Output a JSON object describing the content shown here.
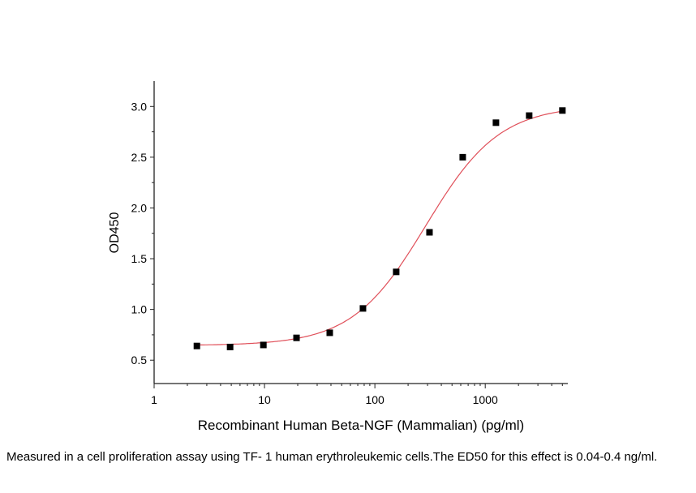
{
  "chart_data": {
    "type": "scatter",
    "title": "",
    "xlabel": "Recombinant Human Beta-NGF (Mammalian) (pg/ml)",
    "ylabel": "OD450",
    "x_scale": "log",
    "xlim": [
      1,
      5600
    ],
    "ylim": [
      0.27,
      3.25
    ],
    "x_ticks": [
      "1",
      "10",
      "100",
      "1000"
    ],
    "y_ticks": [
      "0.5",
      "1.0",
      "1.5",
      "2.0",
      "2.5",
      "3.0"
    ],
    "grid": false,
    "colors": {
      "points": "#000000",
      "fit": "#e0505a"
    },
    "series": [
      {
        "x": [
          2.44,
          4.88,
          9.77,
          19.5,
          39,
          78,
          156,
          312.5,
          625,
          1250,
          2500,
          5000
        ],
        "y": [
          0.64,
          0.63,
          0.65,
          0.72,
          0.77,
          1.01,
          1.37,
          1.76,
          2.5,
          2.84,
          2.91,
          2.96
        ]
      }
    ],
    "fit": {
      "model": "4PL",
      "bottom": 0.645,
      "top": 3.01,
      "ec50": 290,
      "hill": 1.3
    }
  },
  "caption": "Measured in a cell proliferation assay using TF- 1 human erythroleukemic cells.The ED50 for this effect is 0.04-0.4 ng/ml."
}
